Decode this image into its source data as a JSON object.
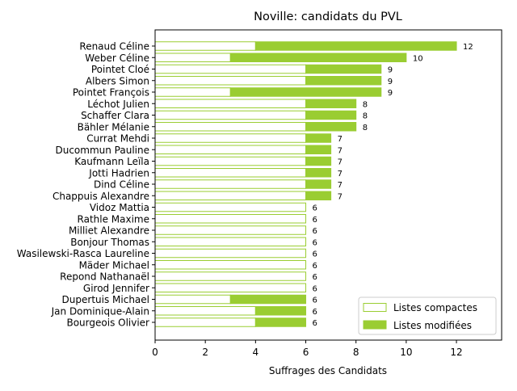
{
  "chart_data": {
    "type": "bar",
    "orientation": "horizontal",
    "stacked": true,
    "title": "Noville: candidats du PVL",
    "xlabel": "Suffrages des Candidats",
    "ylabel": "",
    "xlim": [
      0,
      13.8
    ],
    "xticks": [
      0,
      2,
      4,
      6,
      8,
      10,
      12
    ],
    "grid": false,
    "legend_position": "bottom-right",
    "colors": {
      "modified": "#9acd32",
      "compact_edge": "#9acd32",
      "compact_fill": "#ffffff"
    },
    "categories": [
      "Renaud Céline",
      "Weber Céline",
      "Pointet Cloé",
      "Albers Simon",
      "Pointet François",
      "Léchot Julien",
      "Schaffer Clara",
      "Bähler Mélanie",
      "Currat Mehdi",
      "Ducommun Pauline",
      "Kaufmann Leïla",
      "Jotti Hadrien",
      "Dind Céline",
      "Chappuis Alexandre",
      "Vidoz Mattia",
      "Rathle Maxime",
      "Milliet Alexandre",
      "Bonjour Thomas",
      "Wasilewski-Rasca Laureline",
      "Mäder Michael",
      "Repond Nathanaël",
      "Girod Jennifer",
      "Dupertuis Michael",
      "Jan Dominique-Alain",
      "Bourgeois Olivier"
    ],
    "series": [
      {
        "name": "Listes compactes",
        "values": [
          4,
          3,
          6,
          6,
          3,
          6,
          6,
          6,
          6,
          6,
          6,
          6,
          6,
          6,
          6,
          6,
          6,
          6,
          6,
          6,
          6,
          6,
          3,
          4,
          4
        ]
      },
      {
        "name": "Listes modifiées",
        "values": [
          8,
          7,
          3,
          3,
          6,
          2,
          2,
          2,
          1,
          1,
          1,
          1,
          1,
          1,
          0,
          0,
          0,
          0,
          0,
          0,
          0,
          0,
          3,
          2,
          2
        ]
      }
    ],
    "totals": [
      12,
      10,
      9,
      9,
      9,
      8,
      8,
      8,
      7,
      7,
      7,
      7,
      7,
      7,
      6,
      6,
      6,
      6,
      6,
      6,
      6,
      6,
      6,
      6,
      6
    ]
  }
}
